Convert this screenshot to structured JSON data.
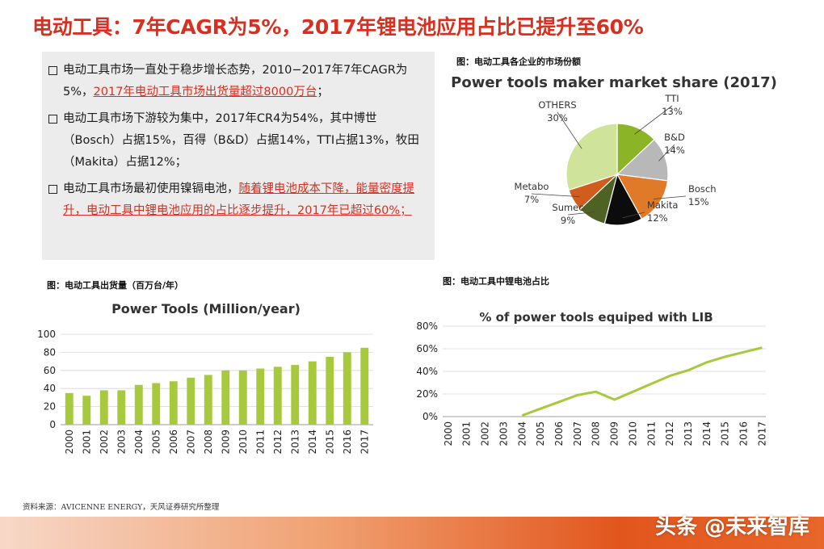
{
  "title": "电动工具：7年CAGR为5%，2017年锂电池应用占比已提升至60%",
  "bullets": [
    {
      "pre": "电动工具市场一直处于稳步增长态势，2010−2017年7年CAGR为5%，",
      "hl": "2017年电动工具市场出货量超过8000万台",
      "post": "；"
    },
    {
      "pre": "电动工具市场下游较为集中，2017年CR4为54%，其中博世（Bosch）占据15%，百得（B&D）占据14%，TTI占据13%，牧田（Makita）占据12%；",
      "hl": "",
      "post": ""
    },
    {
      "pre": "电动工具市场最初使用镍镉电池，",
      "hl": "随着锂电池成本下降，能量密度提升，电动工具中锂电池应用的占比逐步提升，2017年已超过60%；",
      "post": ""
    }
  ],
  "captions": {
    "pie": "图：电动工具各企业的市场份额",
    "bar": "图：电动工具出货量（百万台/年）",
    "line": "图：电动工具中锂电池占比"
  },
  "source": "资料来源：AVICENNE ENERGY，天风证券研究所整理",
  "watermark": "头条 @未来智库",
  "chart_data": [
    {
      "type": "pie",
      "title": "Power tools maker market share (2017)",
      "slices": [
        {
          "name": "TTI",
          "value": 13,
          "label": "13%",
          "color": "#8cb427"
        },
        {
          "name": "B&D",
          "value": 14,
          "label": "14%",
          "color": "#b8b8b8"
        },
        {
          "name": "Bosch",
          "value": 15,
          "label": "15%",
          "color": "#e07a28"
        },
        {
          "name": "Makita",
          "value": 12,
          "label": "12%",
          "color": "#0c0c0c"
        },
        {
          "name": "Sumec",
          "value": 9,
          "label": "9%",
          "color": "#4e6224"
        },
        {
          "name": "Metabo",
          "value": 7,
          "label": "7%",
          "color": "#cf5e1e"
        },
        {
          "name": "OTHERS",
          "value": 30,
          "label": "30%",
          "color": "#cfe49a"
        }
      ]
    },
    {
      "type": "bar",
      "title": "Power Tools (Million/year)",
      "categories": [
        "2000",
        "2001",
        "2002",
        "2003",
        "2004",
        "2005",
        "2006",
        "2007",
        "2008",
        "2009",
        "2010",
        "2011",
        "2012",
        "2013",
        "2014",
        "2015",
        "2016",
        "2017"
      ],
      "values": [
        35,
        32,
        38,
        38,
        44,
        46,
        48,
        52,
        55,
        60,
        60,
        62,
        64,
        66,
        70,
        75,
        80,
        85
      ],
      "ylim": [
        0,
        100
      ],
      "yticks": [
        0,
        20,
        40,
        60,
        80,
        100
      ],
      "color": "#a6c93d",
      "grid": true
    },
    {
      "type": "line",
      "title": "% of power tools equiped with LIB",
      "x": [
        "2000",
        "2001",
        "2002",
        "2003",
        "2004",
        "2005",
        "2006",
        "2007",
        "2008",
        "2009",
        "2010",
        "2011",
        "2012",
        "2013",
        "2014",
        "2015",
        "2016",
        "2017"
      ],
      "series": [
        {
          "values": [
            null,
            null,
            null,
            null,
            0.01,
            0.07,
            0.13,
            0.19,
            0.22,
            0.15,
            0.22,
            0.29,
            0.36,
            0.41,
            0.48,
            0.53,
            0.57,
            0.61
          ]
        }
      ],
      "ylim": [
        0,
        0.8
      ],
      "yticks": [
        0,
        0.2,
        0.4,
        0.6,
        0.8
      ],
      "ytick_labels": [
        "0%",
        "20%",
        "40%",
        "60%",
        "80%"
      ],
      "color": "#a6c93d",
      "grid": true
    }
  ]
}
